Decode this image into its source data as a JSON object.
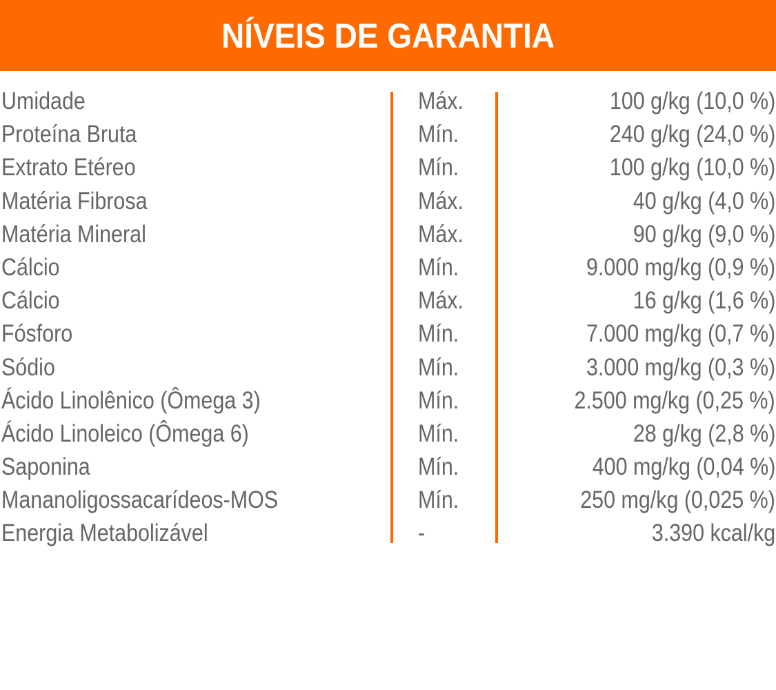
{
  "header": {
    "title": "NÍVEIS DE GARANTIA"
  },
  "colors": {
    "accent": "#ff6a00",
    "text": "#666666",
    "background": "#ffffff",
    "header_text": "#ffffff"
  },
  "rows": [
    {
      "name": "Umidade",
      "type": "Máx.",
      "value": "100 g/kg (10,0 %)"
    },
    {
      "name": "Proteína Bruta",
      "type": "Mín.",
      "value": "240 g/kg (24,0 %)"
    },
    {
      "name": "Extrato Etéreo",
      "type": "Mín.",
      "value": "100 g/kg (10,0 %)"
    },
    {
      "name": "Matéria Fibrosa",
      "type": "Máx.",
      "value": "40 g/kg (4,0 %)"
    },
    {
      "name": "Matéria Mineral",
      "type": "Máx.",
      "value": "90 g/kg (9,0 %)"
    },
    {
      "name": "Cálcio",
      "type": "Mín.",
      "value": "9.000 mg/kg (0,9 %)"
    },
    {
      "name": "Cálcio",
      "type": "Máx.",
      "value": "16 g/kg (1,6 %)"
    },
    {
      "name": "Fósforo",
      "type": "Mín.",
      "value": "7.000 mg/kg (0,7 %)"
    },
    {
      "name": "Sódio",
      "type": "Mín.",
      "value": "3.000 mg/kg (0,3 %)"
    },
    {
      "name": "Ácido Linolênico (Ômega 3)",
      "type": "Mín.",
      "value": "2.500 mg/kg (0,25 %)"
    },
    {
      "name": "Ácido Linoleico (Ômega 6)",
      "type": "Mín.",
      "value": "28 g/kg (2,8 %)"
    },
    {
      "name": "Saponina",
      "type": "Mín.",
      "value": "400 mg/kg (0,04 %)"
    },
    {
      "name": "Mananoligossacarídeos-MOS",
      "type": "Mín.",
      "value": "250 mg/kg (0,025 %)"
    },
    {
      "name": "Energia Metabolizável",
      "type": "-",
      "value": "3.390 kcal/kg"
    }
  ]
}
